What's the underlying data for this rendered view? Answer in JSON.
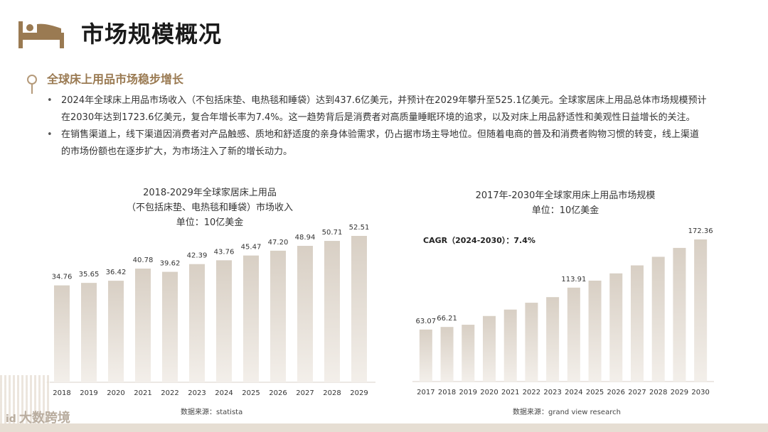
{
  "page": {
    "title": "市场规模概况",
    "icon": "bed-icon",
    "accent": "#9a7a52"
  },
  "section": {
    "title": "全球床上用品市场稳步增长",
    "bullets": [
      {
        "line1": "2024年全球床上用品市场收入（不包括床垫、电热毯和睡袋）达到437.6亿美元，并预计在2029年攀升至525.1亿美元。全球家居床上用品总体市场规模预计",
        "line2": "在2030年达到1723.6亿美元，复合年增长率为7.4%。这一趋势背后是消费者对高质量睡眠环境的追求，以及对床上用品舒适性和美观性日益增长的关注。"
      },
      {
        "line1": "在销售渠道上，线下渠道因消费者对产品触感、质地和舒适度的亲身体验需求，仍占据市场主导地位。但随着电商的普及和消费者购物习惯的转变，线上渠道",
        "line2": "的市场份额也在逐步扩大，为市场注入了新的增长动力。"
      }
    ]
  },
  "chart_data": [
    {
      "type": "bar",
      "title": "2018-2029年全球家居床上用品",
      "subtitle": "（不包括床垫、电热毯和睡袋）市场收入",
      "unit": "单位：10亿美金",
      "categories": [
        "2018",
        "2019",
        "2020",
        "2021",
        "2022",
        "2023",
        "2024",
        "2025",
        "2026",
        "2027",
        "2028",
        "2029"
      ],
      "values": [
        34.76,
        35.65,
        36.42,
        40.78,
        39.62,
        42.39,
        43.76,
        45.47,
        47.2,
        48.94,
        50.71,
        52.51
      ],
      "labels": [
        "34.76",
        "35.65",
        "36.42",
        "40.78",
        "39.62",
        "42.39",
        "43.76",
        "45.47",
        "47.20",
        "48.94",
        "50.71",
        "52.51"
      ],
      "bar_color_top": "#d8cfc4",
      "bar_color_bottom": "#f3efea",
      "grid": false,
      "source": "数据来源：statista"
    },
    {
      "type": "bar",
      "title": "2017年-2030年全球家用床上用品市场规模",
      "unit": "单位：10亿美金",
      "annotation": "CAGR（2024-2030）：7.4%",
      "categories": [
        "2017",
        "2018",
        "2019",
        "2020",
        "2021",
        "2022",
        "2023",
        "2024",
        "2025",
        "2026",
        "2027",
        "2028",
        "2029",
        "2030"
      ],
      "values": [
        63.07,
        66.21,
        68.9,
        79.5,
        87.3,
        95.6,
        102.4,
        113.91,
        122.4,
        131.2,
        140.9,
        151.3,
        162.1,
        172.36
      ],
      "labels": [
        "63.07",
        "66.21",
        "",
        "",
        "",
        "",
        "",
        "113.91",
        "",
        "",
        "",
        "",
        "",
        "172.36"
      ],
      "bar_color_top": "#d8cfc4",
      "bar_color_bottom": "#f3efea",
      "grid": false,
      "source": "数据来源：grand view research"
    }
  ],
  "logo": {
    "text": "大数跨境",
    "mark": "id"
  }
}
